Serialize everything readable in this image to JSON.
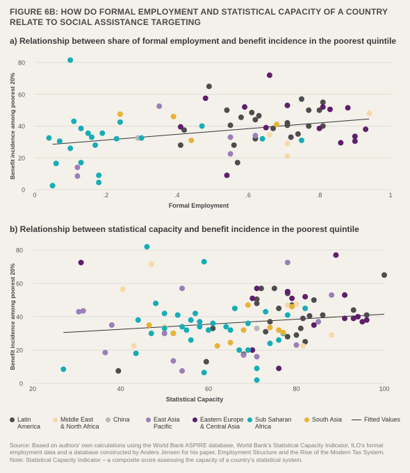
{
  "figure_title": "FIGURE 6B: HOW DO FORMAL EMPLOYMENT AND STATISTICAL CAPACITY OF A COUNTRY RELATE TO SOCIAL ASSISTANCE TARGETING",
  "colors": {
    "background": "#f4f1eb",
    "Latin America": "#4d4d4d",
    "Middle East & North Africa": "#f7d9a8",
    "China": "#b8b8b8",
    "East Asia Pacific": "#9b7fb8",
    "Eastern Europe & Central Asia": "#5e1f6b",
    "Sub Saharan Africa": "#16adb7",
    "South Asia": "#e9b236",
    "Fitted Values": "#333333"
  },
  "legend": [
    {
      "key": "Latin America",
      "label": "Latin\nAmerica",
      "type": "dot"
    },
    {
      "key": "Middle East & North Africa",
      "label": "Middle East\n& North Africa",
      "type": "dot"
    },
    {
      "key": "China",
      "label": "China",
      "type": "dot"
    },
    {
      "key": "East Asia Pacific",
      "label": "East Asia\nPacific",
      "type": "dot"
    },
    {
      "key": "Eastern Europe & Central Asia",
      "label": "Eastern Europe\n& Central Asia",
      "type": "dot"
    },
    {
      "key": "Sub Saharan Africa",
      "label": "Sub Saharan\nAfrica",
      "type": "dot"
    },
    {
      "key": "South Asia",
      "label": "South Asia",
      "type": "dot"
    },
    {
      "key": "Fitted Values",
      "label": "Fitted Values",
      "type": "line"
    }
  ],
  "source_note": "Source: Based on authors' own calculations using the World Bank ASPIRE database, World Bank's Statistical Capacity Indicator, ILO's formal employment data and a database constructed by Anders Jensen for his paper, Employment Structure and the Rise of the Modern Tax System.",
  "note": "Note: Statistical Capacity Indicator – a composite score assessing the capacity of a country's statistical system.",
  "chart_data": [
    {
      "type": "scatter",
      "title": "a) Relationship between share of formal employment and benefit incidence in the poorest quintile",
      "xlabel": "Formal Employment",
      "ylabel": "Benefit incidence among poorest 20%",
      "xlim": [
        0,
        1
      ],
      "ylim": [
        0,
        80
      ],
      "xticks": [
        0,
        0.2,
        0.4,
        0.6,
        0.8,
        1
      ],
      "xtick_labels": [
        "0",
        ".2",
        ".4",
        ".6",
        ".8",
        "1"
      ],
      "yticks": [
        0,
        20,
        40,
        60,
        80
      ],
      "ytick_labels": [
        "0",
        "20",
        "40",
        "60",
        "80"
      ],
      "fitted_line": {
        "x": [
          0.05,
          0.94
        ],
        "y": [
          28.5,
          44.5
        ]
      },
      "series": [
        {
          "name": "Latin America",
          "points": [
            [
              0.42,
              37.5
            ],
            [
              0.41,
              28
            ],
            [
              0.49,
              65
            ],
            [
              0.54,
              50
            ],
            [
              0.55,
              40.5
            ],
            [
              0.56,
              28
            ],
            [
              0.57,
              17
            ],
            [
              0.58,
              45.5
            ],
            [
              0.61,
              48.5
            ],
            [
              0.62,
              44
            ],
            [
              0.63,
              46.5
            ],
            [
              0.62,
              32
            ],
            [
              0.67,
              38.5
            ],
            [
              0.71,
              42
            ],
            [
              0.71,
              40.5
            ],
            [
              0.72,
              33
            ],
            [
              0.74,
              35
            ],
            [
              0.75,
              57
            ],
            [
              0.77,
              50
            ],
            [
              0.77,
              40
            ],
            [
              0.8,
              50
            ],
            [
              0.81,
              55
            ],
            [
              0.81,
              40
            ]
          ]
        },
        {
          "name": "Middle East & North Africa",
          "points": [
            [
              0.66,
              34.5
            ],
            [
              0.71,
              29
            ],
            [
              0.71,
              21
            ],
            [
              0.94,
              48
            ]
          ]
        },
        {
          "name": "China",
          "points": [
            [
              0.29,
              32.5
            ]
          ]
        },
        {
          "name": "East Asia Pacific",
          "points": [
            [
              0.12,
              14
            ],
            [
              0.12,
              8.5
            ],
            [
              0.35,
              52.5
            ],
            [
              0.55,
              33
            ],
            [
              0.55,
              22.5
            ],
            [
              0.62,
              34
            ]
          ]
        },
        {
          "name": "Eastern Europe & Central Asia",
          "points": [
            [
              0.41,
              39.5
            ],
            [
              0.48,
              57.5
            ],
            [
              0.54,
              9
            ],
            [
              0.59,
              52
            ],
            [
              0.65,
              39
            ],
            [
              0.66,
              72
            ],
            [
              0.71,
              53
            ],
            [
              0.8,
              38.5
            ],
            [
              0.81,
              52
            ],
            [
              0.83,
              50.5
            ],
            [
              0.86,
              29.5
            ],
            [
              0.88,
              51.5
            ],
            [
              0.9,
              30.5
            ],
            [
              0.9,
              33.5
            ],
            [
              0.93,
              38
            ]
          ]
        },
        {
          "name": "Sub Saharan Africa",
          "points": [
            [
              0.04,
              32.5
            ],
            [
              0.05,
              2.5
            ],
            [
              0.06,
              16.5
            ],
            [
              0.07,
              30.5
            ],
            [
              0.1,
              81.5
            ],
            [
              0.11,
              43
            ],
            [
              0.1,
              26
            ],
            [
              0.13,
              38.5
            ],
            [
              0.13,
              17
            ],
            [
              0.15,
              35.5
            ],
            [
              0.16,
              33
            ],
            [
              0.17,
              28
            ],
            [
              0.18,
              9
            ],
            [
              0.18,
              4.5
            ],
            [
              0.19,
              35.5
            ],
            [
              0.23,
              32
            ],
            [
              0.24,
              42.5
            ],
            [
              0.3,
              32.5
            ],
            [
              0.47,
              40
            ],
            [
              0.64,
              32
            ],
            [
              0.75,
              31
            ]
          ]
        },
        {
          "name": "South Asia",
          "points": [
            [
              0.24,
              47.5
            ],
            [
              0.39,
              46
            ],
            [
              0.44,
              31
            ],
            [
              0.68,
              41
            ]
          ]
        }
      ]
    },
    {
      "type": "scatter",
      "title": "b) Relationship between statistical capacity and benefit incidence in the poorest quintile",
      "xlabel": "Statistical Capacity",
      "ylabel": "Benefit incidence among poorest 20%",
      "xlim": [
        20,
        100
      ],
      "ylim": [
        0,
        80
      ],
      "xticks": [
        20,
        40,
        60,
        80,
        100
      ],
      "xtick_labels": [
        "20",
        "40",
        "60",
        "80",
        "100"
      ],
      "yticks": [
        0,
        20,
        40,
        60,
        80
      ],
      "ytick_labels": [
        "0",
        "20",
        "40",
        "60",
        "80"
      ],
      "fitted_line": {
        "x": [
          27,
          100
        ],
        "y": [
          30.5,
          41.5
        ]
      },
      "series": [
        {
          "name": "Latin America",
          "points": [
            [
              39.5,
              7.5
            ],
            [
              59.5,
              13
            ],
            [
              61,
              33
            ],
            [
              68,
              17.5
            ],
            [
              71,
              50.5
            ],
            [
              71,
              48
            ],
            [
              72,
              57
            ],
            [
              73,
              31
            ],
            [
              74,
              37
            ],
            [
              75,
              57
            ],
            [
              76,
              45
            ],
            [
              78,
              55
            ],
            [
              78,
              54
            ],
            [
              78,
              28
            ],
            [
              79,
              47
            ],
            [
              80,
              29
            ],
            [
              81,
              33
            ],
            [
              81.5,
              39
            ],
            [
              82,
              25
            ],
            [
              83,
              40.5
            ],
            [
              84,
              50
            ],
            [
              86,
              41
            ],
            [
              93,
              44
            ],
            [
              96,
              41
            ],
            [
              100,
              65
            ]
          ]
        },
        {
          "name": "Middle East & North Africa",
          "points": [
            [
              40.5,
              56.5
            ],
            [
              43,
              22.5
            ],
            [
              47,
              71.5
            ],
            [
              50,
              34
            ],
            [
              78,
              47
            ],
            [
              80,
              47.5
            ],
            [
              81.5,
              22.5
            ],
            [
              88,
              29
            ]
          ]
        },
        {
          "name": "China",
          "points": [
            [
              71,
              33
            ]
          ]
        },
        {
          "name": "East Asia Pacific",
          "points": [
            [
              30.5,
              43
            ],
            [
              31.5,
              43.5
            ],
            [
              36.5,
              18.5
            ],
            [
              38,
              35
            ],
            [
              50,
              30
            ],
            [
              52,
              13.5
            ],
            [
              54,
              7.5
            ],
            [
              54,
              57
            ],
            [
              68,
              17
            ],
            [
              71,
              16
            ],
            [
              78,
              72.5
            ],
            [
              80,
              23
            ],
            [
              85,
              37
            ],
            [
              88,
              53
            ]
          ]
        },
        {
          "name": "Eastern Europe & Central Asia",
          "points": [
            [
              31,
              72.5
            ],
            [
              70,
              20
            ],
            [
              70,
              51
            ],
            [
              71,
              57
            ],
            [
              76,
              9
            ],
            [
              78,
              55
            ],
            [
              79,
              51
            ],
            [
              82,
              52
            ],
            [
              84,
              35
            ],
            [
              89,
              77
            ],
            [
              91,
              39
            ],
            [
              91,
              53
            ],
            [
              93,
              39
            ],
            [
              94,
              40
            ],
            [
              95,
              37
            ],
            [
              96,
              38
            ]
          ]
        },
        {
          "name": "Sub Saharan Africa",
          "points": [
            [
              27,
              8.5
            ],
            [
              43.5,
              18
            ],
            [
              44,
              38
            ],
            [
              46,
              82
            ],
            [
              47,
              30
            ],
            [
              48,
              48
            ],
            [
              50,
              42
            ],
            [
              50,
              33
            ],
            [
              52,
              30
            ],
            [
              53,
              41
            ],
            [
              54,
              34
            ],
            [
              55,
              32
            ],
            [
              56,
              38
            ],
            [
              56,
              26
            ],
            [
              57,
              42
            ],
            [
              58,
              37
            ],
            [
              58,
              34
            ],
            [
              59,
              73
            ],
            [
              59,
              6.5
            ],
            [
              60,
              32
            ],
            [
              61,
              36
            ],
            [
              64,
              34
            ],
            [
              65,
              32
            ],
            [
              66,
              45
            ],
            [
              67,
              20
            ],
            [
              69,
              20
            ],
            [
              69,
              36
            ],
            [
              71,
              9
            ],
            [
              71,
              2
            ],
            [
              73,
              43
            ],
            [
              74,
              24
            ],
            [
              76,
              26
            ],
            [
              77,
              30
            ],
            [
              78,
              41
            ],
            [
              82,
              45
            ]
          ]
        },
        {
          "name": "South Asia",
          "points": [
            [
              46.5,
              35
            ],
            [
              52,
              30
            ],
            [
              62,
              22.5
            ],
            [
              65,
              24.5
            ],
            [
              68,
              32
            ],
            [
              69,
              47
            ],
            [
              74,
              33.5
            ],
            [
              76,
              32
            ],
            [
              77,
              30.5
            ],
            [
              79,
              46
            ]
          ]
        }
      ]
    }
  ]
}
